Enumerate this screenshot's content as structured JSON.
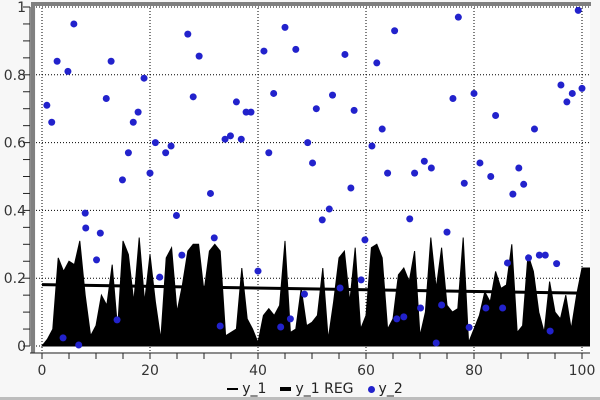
{
  "colors": {
    "background": "#f7f7f7",
    "plot_bg": "#ffffff",
    "grid": "#000000",
    "axis": "#222222",
    "text": "#333333",
    "frame": "#808080",
    "bottom_border": "#bdbdbd"
  },
  "chart_data": {
    "type": "mixed",
    "title": "",
    "xlabel": "",
    "ylabel": "",
    "xlim": [
      0,
      100
    ],
    "ylim": [
      0,
      1
    ],
    "grid": "dotted",
    "axes": {
      "x": {
        "ticks": [
          {
            "value": 0,
            "label": "0"
          },
          {
            "value": 20,
            "label": "20"
          },
          {
            "value": 40,
            "label": "40"
          },
          {
            "value": 60,
            "label": "60"
          },
          {
            "value": 80,
            "label": "80"
          },
          {
            "value": 100,
            "label": "100"
          }
        ],
        "minor_step": 5
      },
      "y": {
        "ticks": [
          {
            "value": 0,
            "label": "0"
          },
          {
            "value": 0.2,
            "label": "0.2"
          },
          {
            "value": 0.4,
            "label": "0.4"
          },
          {
            "value": 0.6,
            "label": "0.6"
          },
          {
            "value": 0.8,
            "label": "0.8"
          },
          {
            "value": 1,
            "label": "1"
          }
        ],
        "minor_step": 0.05
      }
    },
    "legend": {
      "position": "bottom",
      "items": [
        {
          "label": "y_1",
          "symbol": "thin-line"
        },
        {
          "label": "y_1 REG",
          "symbol": "thick-line"
        },
        {
          "label": "y_2",
          "symbol": "dot"
        }
      ]
    },
    "series": [
      {
        "name": "y_1",
        "type": "area",
        "color": "#000000",
        "x": [
          0,
          1,
          2,
          3,
          4,
          5,
          6,
          7,
          8,
          9,
          10,
          11,
          12,
          13,
          14,
          15,
          16,
          17,
          18,
          19,
          20,
          21,
          22,
          23,
          24,
          25,
          26,
          27,
          28,
          29,
          30,
          31,
          32,
          33,
          34,
          35,
          36,
          37,
          38,
          39,
          40,
          41,
          42,
          43,
          44,
          45,
          46,
          47,
          48,
          49,
          50,
          51,
          52,
          53,
          54,
          55,
          56,
          57,
          58,
          59,
          60,
          61,
          62,
          63,
          64,
          65,
          66,
          67,
          68,
          69,
          70,
          71,
          72,
          73,
          74,
          75,
          76,
          77,
          78,
          79,
          80,
          81,
          82,
          83,
          84,
          85,
          86,
          87,
          88,
          89,
          90,
          91,
          92,
          93,
          94,
          95,
          96,
          97,
          98,
          99,
          100
        ],
        "values": [
          0.0,
          0.02,
          0.05,
          0.26,
          0.22,
          0.25,
          0.24,
          0.31,
          0.15,
          0.03,
          0.06,
          0.15,
          0.12,
          0.24,
          0.05,
          0.31,
          0.27,
          0.13,
          0.32,
          0.13,
          0.27,
          0.13,
          0.02,
          0.26,
          0.29,
          0.1,
          0.18,
          0.28,
          0.3,
          0.3,
          0.16,
          0.28,
          0.3,
          0.28,
          0.03,
          0.04,
          0.05,
          0.23,
          0.08,
          0.05,
          0.01,
          0.09,
          0.11,
          0.09,
          0.12,
          0.31,
          0.04,
          0.05,
          0.17,
          0.06,
          0.07,
          0.09,
          0.23,
          0.02,
          0.13,
          0.26,
          0.28,
          0.13,
          0.29,
          0.05,
          0.09,
          0.29,
          0.3,
          0.26,
          0.05,
          0.08,
          0.21,
          0.23,
          0.19,
          0.28,
          0.03,
          0.1,
          0.32,
          0.17,
          0.29,
          0.12,
          0.1,
          0.11,
          0.32,
          0.01,
          0.05,
          0.09,
          0.16,
          0.13,
          0.22,
          0.17,
          0.18,
          0.3,
          0.04,
          0.06,
          0.27,
          0.22,
          0.1,
          0.04,
          0.19,
          0.1,
          0.08,
          0.15,
          0.05,
          0.15,
          0.23
        ]
      },
      {
        "name": "y_1 REG",
        "type": "line",
        "color": "#000000",
        "points": [
          [
            0,
            0.181
          ],
          [
            100,
            0.156
          ]
        ]
      },
      {
        "name": "y_2",
        "type": "scatter",
        "color": "#2222cc",
        "points": [
          [
            0.9,
            0.71
          ],
          [
            1.8,
            0.66
          ],
          [
            2.8,
            0.84
          ],
          [
            3.9,
            0.024
          ],
          [
            4.8,
            0.81
          ],
          [
            5.9,
            0.95
          ],
          [
            6.8,
            0.003
          ],
          [
            8,
            0.392
          ],
          [
            8.1,
            0.348
          ],
          [
            10.1,
            0.254
          ],
          [
            10.8,
            0.333
          ],
          [
            11.9,
            0.73
          ],
          [
            12.8,
            0.84
          ],
          [
            13.9,
            0.077
          ],
          [
            14.9,
            0.49
          ],
          [
            16,
            0.57
          ],
          [
            16.9,
            0.66
          ],
          [
            17.8,
            0.69
          ],
          [
            18.9,
            0.79
          ],
          [
            20,
            0.51
          ],
          [
            21,
            0.6
          ],
          [
            21.8,
            0.203
          ],
          [
            22.9,
            0.57
          ],
          [
            23.9,
            0.59
          ],
          [
            24.9,
            0.385
          ],
          [
            25.9,
            0.268
          ],
          [
            27,
            0.92
          ],
          [
            28,
            0.735
          ],
          [
            29.1,
            0.855
          ],
          [
            31.2,
            0.45
          ],
          [
            31.9,
            0.319
          ],
          [
            33,
            0.059
          ],
          [
            33.9,
            0.61
          ],
          [
            34.9,
            0.62
          ],
          [
            36,
            0.72
          ],
          [
            36.9,
            0.61
          ],
          [
            37.8,
            0.69
          ],
          [
            38.7,
            0.69
          ],
          [
            40,
            0.221
          ],
          [
            41.1,
            0.87
          ],
          [
            42,
            0.57
          ],
          [
            42.9,
            0.745
          ],
          [
            44.2,
            0.056
          ],
          [
            45,
            0.94
          ],
          [
            46,
            0.08
          ],
          [
            47,
            0.875
          ],
          [
            48.6,
            0.153
          ],
          [
            49.2,
            0.6
          ],
          [
            50.1,
            0.54
          ],
          [
            50.8,
            0.7
          ],
          [
            51.9,
            0.372
          ],
          [
            53.2,
            0.404
          ],
          [
            53.8,
            0.74
          ],
          [
            55.2,
            0.171
          ],
          [
            56.1,
            0.86
          ],
          [
            57.2,
            0.466
          ],
          [
            57.8,
            0.695
          ],
          [
            59.1,
            0.195
          ],
          [
            59.8,
            0.313
          ],
          [
            61.1,
            0.59
          ],
          [
            62,
            0.835
          ],
          [
            63,
            0.64
          ],
          [
            64,
            0.51
          ],
          [
            65.3,
            0.93
          ],
          [
            65.7,
            0.08
          ],
          [
            67,
            0.086
          ],
          [
            68.1,
            0.375
          ],
          [
            69,
            0.51
          ],
          [
            70.1,
            0.112
          ],
          [
            70.8,
            0.545
          ],
          [
            72.1,
            0.525
          ],
          [
            73,
            0.009
          ],
          [
            74,
            0.121
          ],
          [
            75,
            0.336
          ],
          [
            76.1,
            0.73
          ],
          [
            77.1,
            0.97
          ],
          [
            78.2,
            0.48
          ],
          [
            79.1,
            0.055
          ],
          [
            80,
            0.745
          ],
          [
            81.1,
            0.54
          ],
          [
            82.2,
            0.112
          ],
          [
            83.1,
            0.5
          ],
          [
            84,
            0.68
          ],
          [
            85.3,
            0.112
          ],
          [
            86.2,
            0.245
          ],
          [
            87.2,
            0.448
          ],
          [
            88.3,
            0.525
          ],
          [
            89.2,
            0.477
          ],
          [
            90.1,
            0.26
          ],
          [
            91.2,
            0.64
          ],
          [
            92.1,
            0.268
          ],
          [
            93.2,
            0.268
          ],
          [
            94.1,
            0.044
          ],
          [
            95.3,
            0.243
          ],
          [
            96.1,
            0.77
          ],
          [
            97.2,
            0.72
          ],
          [
            98.2,
            0.745
          ],
          [
            99.3,
            0.99
          ],
          [
            100,
            0.76
          ]
        ]
      }
    ]
  }
}
